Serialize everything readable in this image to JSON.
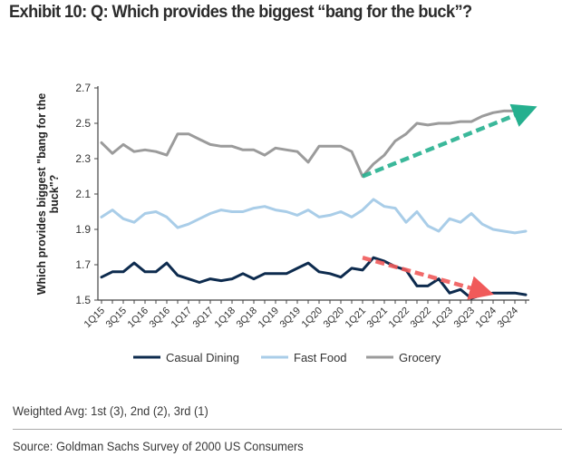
{
  "header": {
    "title": "Exhibit 10: Q: Which provides the biggest “bang for the buck”?"
  },
  "footer": {
    "note": "Weighted Avg: 1st (3), 2nd (2), 3rd (1)",
    "source": "Source: Goldman Sachs Survey of 2000 US Consumers"
  },
  "chart_data": {
    "type": "line",
    "title": "Exhibit 10: Q: Which provides the biggest “bang for the buck”?",
    "xlabel": "",
    "ylabel": "Which provides biggest \"bang for the buck\"?",
    "ylim": [
      1.5,
      2.7
    ],
    "yticks": [
      1.5,
      1.7,
      1.9,
      2.1,
      2.3,
      2.5,
      2.7
    ],
    "ytick_labels": [
      "1.5",
      "1.7",
      "1.9",
      "2.1",
      "2.3",
      "2.5",
      "2.7"
    ],
    "grid": false,
    "legend_position": "bottom",
    "x": [
      "1Q15",
      "2Q15",
      "3Q15",
      "4Q15",
      "1Q16",
      "2Q16",
      "3Q16",
      "4Q16",
      "1Q17",
      "2Q17",
      "3Q17",
      "4Q17",
      "1Q18",
      "2Q18",
      "3Q18",
      "4Q18",
      "1Q19",
      "2Q19",
      "3Q19",
      "4Q19",
      "1Q20",
      "2Q20",
      "3Q20",
      "4Q20",
      "1Q21",
      "2Q21",
      "3Q21",
      "4Q21",
      "1Q22",
      "2Q22",
      "3Q22",
      "4Q22",
      "1Q23",
      "2Q23",
      "3Q23",
      "4Q23",
      "1Q24",
      "2Q24",
      "3Q24",
      "4Q24"
    ],
    "xtick_labels": [
      "1Q15",
      "3Q15",
      "1Q16",
      "3Q16",
      "1Q17",
      "3Q17",
      "1Q18",
      "3Q18",
      "1Q19",
      "3Q19",
      "1Q20",
      "3Q20",
      "1Q21",
      "3Q21",
      "1Q22",
      "3Q22",
      "1Q23",
      "3Q23",
      "1Q24",
      "3Q24"
    ],
    "series": [
      {
        "name": "Casual Dining",
        "color": "#0d2b4e",
        "values": [
          1.63,
          1.66,
          1.66,
          1.71,
          1.66,
          1.66,
          1.71,
          1.64,
          1.62,
          1.6,
          1.62,
          1.61,
          1.62,
          1.65,
          1.62,
          1.65,
          1.65,
          1.65,
          1.68,
          1.71,
          1.66,
          1.65,
          1.63,
          1.68,
          1.67,
          1.74,
          1.72,
          1.69,
          1.67,
          1.58,
          1.58,
          1.62,
          1.54,
          1.56,
          1.51,
          1.53,
          1.54,
          1.54,
          1.54,
          1.53
        ]
      },
      {
        "name": "Fast Food",
        "color": "#a9cde8",
        "values": [
          1.97,
          2.01,
          1.96,
          1.94,
          1.99,
          2.0,
          1.97,
          1.91,
          1.93,
          1.96,
          1.99,
          2.01,
          2.0,
          2.0,
          2.02,
          2.03,
          2.01,
          2.0,
          1.98,
          2.01,
          1.97,
          1.98,
          2.0,
          1.97,
          2.01,
          2.07,
          2.03,
          2.02,
          1.94,
          2.0,
          1.92,
          1.89,
          1.96,
          1.94,
          1.99,
          1.93,
          1.9,
          1.89,
          1.88,
          1.89
        ]
      },
      {
        "name": "Grocery",
        "color": "#9b9b9b",
        "values": [
          2.39,
          2.33,
          2.38,
          2.34,
          2.35,
          2.34,
          2.32,
          2.44,
          2.44,
          2.41,
          2.38,
          2.37,
          2.37,
          2.35,
          2.35,
          2.32,
          2.36,
          2.35,
          2.34,
          2.28,
          2.37,
          2.37,
          2.37,
          2.34,
          2.2,
          2.27,
          2.32,
          2.4,
          2.44,
          2.5,
          2.49,
          2.5,
          2.5,
          2.51,
          2.51,
          2.54,
          2.56,
          2.57,
          2.57,
          2.57
        ]
      }
    ],
    "annotations": [
      {
        "type": "dashed-arrow",
        "color": "#26b08f",
        "from": [
          "1Q21",
          2.2
        ],
        "to": [
          "4Q24",
          2.57
        ],
        "label": ""
      },
      {
        "type": "dashed-arrow",
        "color": "#f05a5a",
        "from": [
          "1Q21",
          1.74
        ],
        "to": [
          "4Q23",
          1.55
        ],
        "label": ""
      }
    ]
  }
}
